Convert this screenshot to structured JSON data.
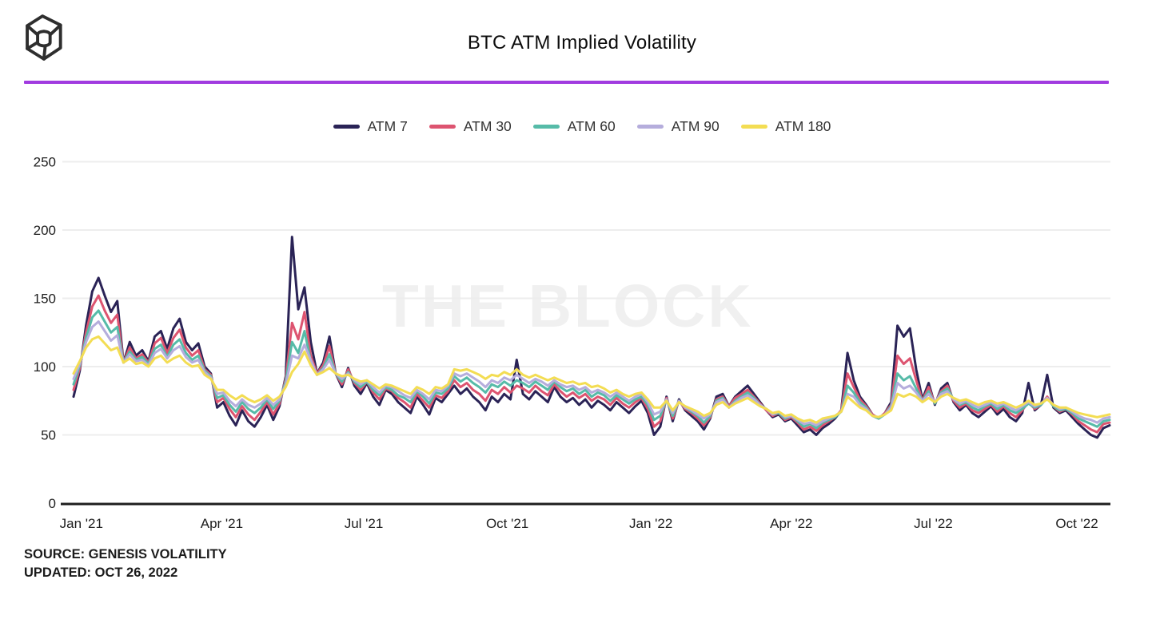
{
  "header": {
    "title": "BTC ATM Implied Volatility",
    "logo": "the-block-cube-logo",
    "accent_color": "#a13be0"
  },
  "watermark": "THE BLOCK",
  "footer": {
    "source": "SOURCE: GENESIS VOLATILITY",
    "updated": "UPDATED: OCT 26, 2022"
  },
  "chart_data": {
    "type": "line",
    "title": "BTC ATM Implied Volatility",
    "xlabel": "",
    "ylabel": "",
    "ylim": [
      0,
      265
    ],
    "yticks": [
      0,
      50,
      100,
      150,
      200,
      250
    ],
    "grid": "horizontal-light",
    "legend_position": "top",
    "x_day_step": 4,
    "x_day_span": [
      0,
      664
    ],
    "xticks": [
      {
        "label": "Jan '21",
        "day": 5
      },
      {
        "label": "Apr '21",
        "day": 95
      },
      {
        "label": "Jul '21",
        "day": 186
      },
      {
        "label": "Oct '21",
        "day": 278
      },
      {
        "label": "Jan '22",
        "day": 370
      },
      {
        "label": "Apr '22",
        "day": 460
      },
      {
        "label": "Jul '22",
        "day": 551
      },
      {
        "label": "Oct '22",
        "day": 643
      }
    ],
    "series": [
      {
        "name": "ATM 7",
        "color": "#2a2356",
        "values": [
          78,
          97,
          130,
          155,
          165,
          152,
          140,
          148,
          103,
          118,
          108,
          112,
          104,
          122,
          126,
          113,
          128,
          135,
          118,
          112,
          117,
          100,
          95,
          70,
          74,
          64,
          57,
          68,
          60,
          56,
          63,
          72,
          61,
          71,
          93,
          195,
          142,
          158,
          118,
          95,
          103,
          122,
          95,
          85,
          99,
          86,
          80,
          88,
          78,
          72,
          83,
          80,
          74,
          70,
          66,
          78,
          72,
          65,
          77,
          74,
          80,
          86,
          80,
          84,
          78,
          74,
          68,
          78,
          74,
          80,
          76,
          105,
          80,
          76,
          82,
          78,
          74,
          85,
          78,
          74,
          77,
          72,
          76,
          70,
          75,
          72,
          68,
          74,
          70,
          66,
          71,
          75,
          66,
          50,
          56,
          78,
          60,
          76,
          68,
          64,
          60,
          54,
          62,
          78,
          80,
          71,
          78,
          82,
          86,
          80,
          74,
          68,
          63,
          65,
          60,
          62,
          57,
          52,
          54,
          50,
          55,
          58,
          62,
          68,
          110,
          90,
          78,
          72,
          65,
          62,
          66,
          74,
          130,
          122,
          128,
          98,
          76,
          88,
          72,
          84,
          88,
          74,
          68,
          72,
          66,
          63,
          67,
          71,
          65,
          69,
          63,
          60,
          66,
          88,
          68,
          72,
          94,
          70,
          66,
          68,
          63,
          58,
          54,
          50,
          48,
          55,
          57
        ]
      },
      {
        "name": "ATM 30",
        "color": "#dd5470",
        "values": [
          83,
          99,
          125,
          144,
          152,
          141,
          132,
          138,
          103,
          114,
          106,
          109,
          103,
          117,
          121,
          110,
          121,
          127,
          114,
          108,
          112,
          98,
          94,
          74,
          77,
          69,
          63,
          71,
          65,
          61,
          67,
          74,
          65,
          73,
          91,
          132,
          120,
          140,
          108,
          95,
          101,
          115,
          95,
          87,
          98,
          88,
          83,
          89,
          81,
          76,
          84,
          82,
          77,
          74,
          70,
          80,
          75,
          70,
          79,
          77,
          82,
          90,
          85,
          88,
          83,
          80,
          75,
          83,
          80,
          85,
          81,
          86,
          84,
          81,
          86,
          82,
          79,
          87,
          82,
          78,
          81,
          77,
          80,
          75,
          78,
          76,
          72,
          77,
          73,
          70,
          74,
          77,
          69,
          56,
          60,
          77,
          62,
          75,
          69,
          66,
          62,
          57,
          63,
          76,
          78,
          71,
          77,
          80,
          83,
          78,
          73,
          68,
          64,
          66,
          61,
          63,
          59,
          54,
          56,
          53,
          57,
          60,
          63,
          68,
          95,
          85,
          76,
          71,
          65,
          62,
          66,
          72,
          108,
          102,
          106,
          90,
          75,
          85,
          73,
          82,
          86,
          75,
          70,
          73,
          68,
          66,
          69,
          72,
          67,
          71,
          66,
          63,
          68,
          74,
          69,
          72,
          78,
          71,
          67,
          69,
          65,
          60,
          57,
          54,
          52,
          58,
          59
        ]
      },
      {
        "name": "ATM 60",
        "color": "#56bba8",
        "values": [
          87,
          101,
          121,
          136,
          141,
          133,
          125,
          129,
          103,
          111,
          105,
          107,
          102,
          113,
          116,
          107,
          116,
          120,
          110,
          105,
          108,
          97,
          93,
          77,
          79,
          72,
          67,
          74,
          69,
          66,
          70,
          76,
          69,
          75,
          89,
          118,
          110,
          126,
          104,
          94,
          99,
          109,
          95,
          89,
          96,
          89,
          85,
          89,
          83,
          79,
          85,
          83,
          79,
          77,
          74,
          82,
          78,
          73,
          81,
          80,
          84,
          93,
          89,
          92,
          88,
          85,
          81,
          87,
          85,
          89,
          86,
          90,
          88,
          85,
          89,
          86,
          83,
          89,
          85,
          82,
          84,
          80,
          83,
          78,
          81,
          79,
          75,
          79,
          76,
          73,
          76,
          78,
          72,
          61,
          64,
          76,
          64,
          75,
          70,
          67,
          64,
          59,
          64,
          75,
          77,
          70,
          75,
          78,
          81,
          77,
          72,
          69,
          65,
          66,
          62,
          64,
          60,
          56,
          58,
          55,
          59,
          61,
          63,
          67,
          86,
          81,
          74,
          70,
          64,
          62,
          65,
          71,
          95,
          90,
          93,
          84,
          75,
          82,
          73,
          81,
          84,
          76,
          72,
          74,
          70,
          68,
          71,
          73,
          69,
          72,
          68,
          66,
          69,
          73,
          70,
          72,
          77,
          71,
          68,
          69,
          66,
          62,
          60,
          58,
          56,
          60,
          61
        ]
      },
      {
        "name": "ATM 90",
        "color": "#b5addc",
        "values": [
          91,
          102,
          118,
          129,
          133,
          126,
          119,
          123,
          103,
          109,
          104,
          105,
          101,
          110,
          113,
          106,
          112,
          115,
          107,
          103,
          105,
          96,
          92,
          80,
          81,
          75,
          71,
          76,
          72,
          70,
          73,
          77,
          72,
          76,
          87,
          108,
          106,
          116,
          105,
          94,
          98,
          105,
          95,
          91,
          95,
          90,
          87,
          90,
          85,
          81,
          86,
          85,
          82,
          79,
          77,
          83,
          80,
          76,
          83,
          82,
          86,
          95,
          93,
          95,
          92,
          89,
          85,
          90,
          88,
          92,
          90,
          94,
          91,
          88,
          91,
          89,
          86,
          90,
          87,
          85,
          86,
          83,
          85,
          81,
          83,
          81,
          78,
          81,
          78,
          75,
          78,
          80,
          74,
          65,
          67,
          76,
          66,
          75,
          70,
          68,
          65,
          62,
          65,
          74,
          76,
          70,
          74,
          77,
          79,
          76,
          72,
          69,
          65,
          67,
          63,
          64,
          61,
          58,
          59,
          57,
          60,
          62,
          64,
          67,
          80,
          78,
          72,
          69,
          64,
          63,
          65,
          70,
          88,
          84,
          86,
          81,
          75,
          80,
          74,
          80,
          82,
          76,
          73,
          75,
          72,
          70,
          72,
          74,
          71,
          73,
          70,
          68,
          71,
          74,
          71,
          73,
          77,
          72,
          69,
          70,
          67,
          64,
          62,
          61,
          59,
          62,
          63
        ]
      },
      {
        "name": "ATM 180",
        "color": "#f3dd53",
        "values": [
          95,
          104,
          114,
          120,
          122,
          117,
          112,
          114,
          103,
          106,
          102,
          103,
          100,
          106,
          108,
          103,
          106,
          108,
          103,
          100,
          101,
          94,
          91,
          83,
          83,
          79,
          76,
          79,
          76,
          74,
          76,
          79,
          75,
          78,
          85,
          96,
          102,
          111,
          101,
          94,
          96,
          99,
          95,
          93,
          94,
          91,
          89,
          90,
          87,
          84,
          87,
          86,
          84,
          82,
          80,
          85,
          83,
          80,
          85,
          84,
          87,
          98,
          97,
          98,
          96,
          94,
          91,
          94,
          93,
          96,
          94,
          98,
          94,
          92,
          94,
          92,
          90,
          92,
          90,
          88,
          89,
          87,
          88,
          85,
          86,
          84,
          81,
          83,
          80,
          78,
          80,
          81,
          76,
          70,
          70,
          75,
          68,
          74,
          71,
          69,
          67,
          64,
          66,
          72,
          74,
          70,
          73,
          75,
          77,
          74,
          71,
          69,
          66,
          67,
          64,
          65,
          62,
          60,
          61,
          59,
          62,
          63,
          64,
          67,
          78,
          74,
          70,
          68,
          64,
          63,
          65,
          68,
          80,
          78,
          80,
          78,
          74,
          77,
          74,
          78,
          80,
          77,
          75,
          76,
          74,
          72,
          74,
          75,
          73,
          74,
          72,
          70,
          72,
          75,
          72,
          73,
          76,
          72,
          70,
          70,
          68,
          66,
          65,
          64,
          63,
          64,
          65
        ]
      }
    ]
  }
}
